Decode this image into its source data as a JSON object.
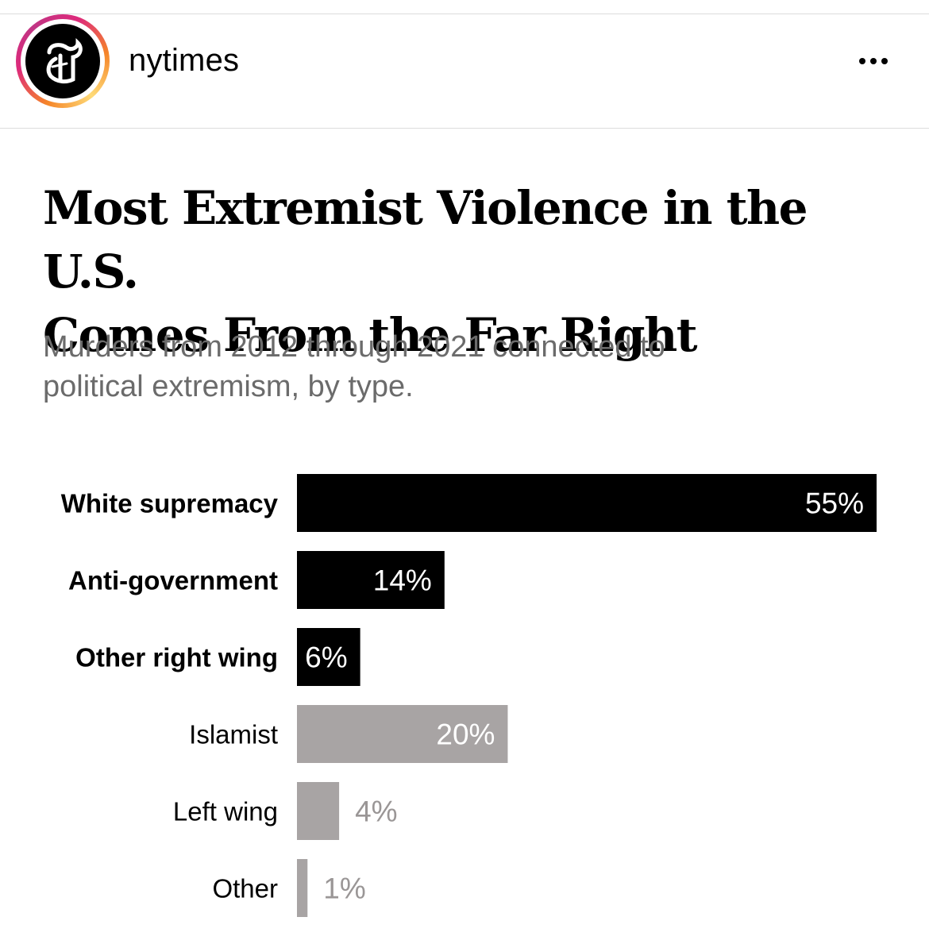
{
  "post": {
    "username": "nytimes",
    "more_icon": "ellipsis-icon",
    "avatar_icon": "nyt-logo-icon"
  },
  "headline": "Most Extremist Violence in the U.S. Comes From the Far Right",
  "headline_lines": [
    "Most Extremist Violence in the U.S.",
    "Comes From the Far Right"
  ],
  "subtitle_lines": [
    "Murders from 2012 through 2021 connected to",
    "political extremism, by type."
  ],
  "chart_data": {
    "type": "bar",
    "orientation": "horizontal",
    "title": "Most Extremist Violence in the U.S. Comes From the Far Right",
    "subtitle": "Murders from 2012 through 2021 connected to political extremism, by type.",
    "xlabel": "",
    "ylabel": "",
    "xlim": [
      0,
      55
    ],
    "categories": [
      "White supremacy",
      "Anti-government",
      "Other right wing",
      "Islamist",
      "Left wing",
      "Other"
    ],
    "values": [
      55,
      14,
      6,
      20,
      4,
      1
    ],
    "labels": [
      "55%",
      "14%",
      "6%",
      "20%",
      "4%",
      "1%"
    ],
    "groups": [
      "right",
      "right",
      "right",
      "other",
      "other",
      "other"
    ],
    "colors": {
      "right": "#000000",
      "other": "#a8a4a4",
      "label_inside": "#ffffff",
      "label_outside": "#9a9696"
    }
  }
}
